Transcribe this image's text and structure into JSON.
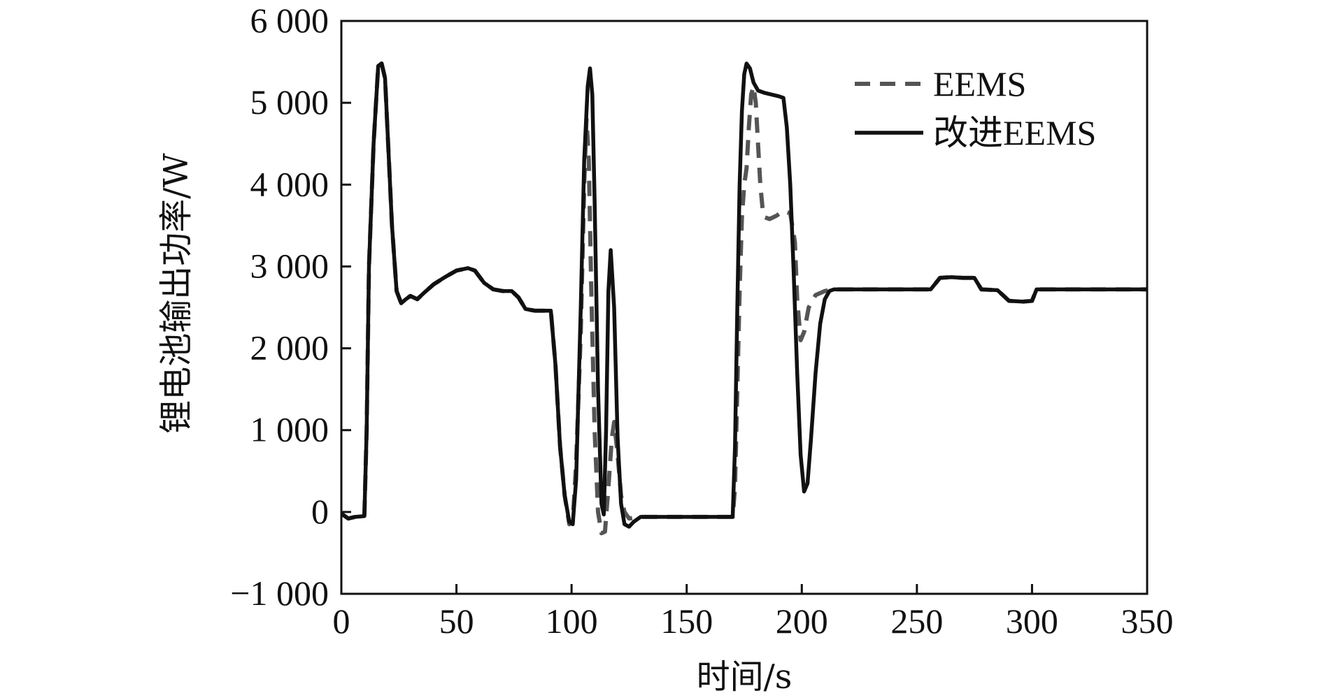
{
  "chart_data": {
    "type": "line",
    "xlabel": "时间/s",
    "ylabel": "锂电池输出功率/W",
    "xlim": [
      0,
      350
    ],
    "ylim": [
      -1000,
      6000
    ],
    "xticks": [
      0,
      50,
      100,
      150,
      200,
      250,
      300,
      350
    ],
    "yticks": [
      -1000,
      0,
      1000,
      2000,
      3000,
      4000,
      5000,
      6000
    ],
    "xtick_labels": [
      "0",
      "50",
      "100",
      "150",
      "200",
      "250",
      "300",
      "350"
    ],
    "ytick_labels": [
      "−1 000",
      "0",
      "1 000",
      "2 000",
      "3 000",
      "4 000",
      "5 000",
      "6 000"
    ],
    "legend_position": "top-right",
    "grid": false,
    "series": [
      {
        "name": "EEMS",
        "style": "dashed",
        "color": "#555555",
        "points": [
          [
            0,
            -20
          ],
          [
            3,
            -80
          ],
          [
            6,
            -60
          ],
          [
            10,
            -50
          ],
          [
            11,
            1000
          ],
          [
            12,
            3000
          ],
          [
            14,
            4500
          ],
          [
            16,
            5450
          ],
          [
            17.5,
            5480
          ],
          [
            19,
            5300
          ],
          [
            22,
            3500
          ],
          [
            24,
            2700
          ],
          [
            26,
            2550
          ],
          [
            28,
            2600
          ],
          [
            30,
            2640
          ],
          [
            33,
            2600
          ],
          [
            36,
            2680
          ],
          [
            40,
            2780
          ],
          [
            45,
            2870
          ],
          [
            50,
            2950
          ],
          [
            55,
            2980
          ],
          [
            58,
            2950
          ],
          [
            62,
            2800
          ],
          [
            66,
            2720
          ],
          [
            70,
            2700
          ],
          [
            74,
            2700
          ],
          [
            77,
            2620
          ],
          [
            80,
            2480
          ],
          [
            84,
            2460
          ],
          [
            88,
            2460
          ],
          [
            91,
            2460
          ],
          [
            93,
            1800
          ],
          [
            95,
            800
          ],
          [
            97,
            200
          ],
          [
            99,
            -150
          ],
          [
            100.5,
            -120
          ],
          [
            102,
            600
          ],
          [
            104,
            2200
          ],
          [
            105.5,
            4000
          ],
          [
            106.5,
            4800
          ],
          [
            107.5,
            4300
          ],
          [
            108.5,
            2800
          ],
          [
            110,
            1000
          ],
          [
            111.5,
            0
          ],
          [
            113,
            -260
          ],
          [
            114.5,
            -240
          ],
          [
            116,
            300
          ],
          [
            117.5,
            900
          ],
          [
            118.5,
            1100
          ],
          [
            120,
            700
          ],
          [
            121.5,
            200
          ],
          [
            123,
            0
          ],
          [
            125,
            -80
          ],
          [
            130,
            -60
          ],
          [
            135,
            -60
          ],
          [
            150,
            -60
          ],
          [
            165,
            -60
          ],
          [
            170,
            -60
          ],
          [
            171,
            300
          ],
          [
            172,
            1500
          ],
          [
            173,
            2700
          ],
          [
            174,
            3600
          ],
          [
            175,
            4000
          ],
          [
            176,
            4200
          ],
          [
            177,
            4700
          ],
          [
            178,
            5100
          ],
          [
            179,
            5200
          ],
          [
            180,
            5000
          ],
          [
            181,
            4500
          ],
          [
            182,
            4000
          ],
          [
            183,
            3700
          ],
          [
            184,
            3600
          ],
          [
            186,
            3580
          ],
          [
            189,
            3620
          ],
          [
            192,
            3680
          ],
          [
            195,
            3650
          ],
          [
            197,
            3300
          ],
          [
            198,
            2600
          ],
          [
            199.5,
            2100
          ],
          [
            201,
            2200
          ],
          [
            203,
            2500
          ],
          [
            206,
            2650
          ],
          [
            210,
            2700
          ],
          [
            214,
            2720
          ],
          [
            230,
            2720
          ],
          [
            245,
            2720
          ],
          [
            256,
            2720
          ],
          [
            260,
            2860
          ],
          [
            265,
            2870
          ],
          [
            270,
            2860
          ],
          [
            275,
            2860
          ],
          [
            278,
            2720
          ],
          [
            285,
            2710
          ],
          [
            290,
            2580
          ],
          [
            296,
            2570
          ],
          [
            300,
            2580
          ],
          [
            302,
            2720
          ],
          [
            310,
            2720
          ],
          [
            330,
            2720
          ],
          [
            350,
            2720
          ]
        ]
      },
      {
        "name": "改进EEMS",
        "style": "solid",
        "color": "#111111",
        "points": [
          [
            0,
            -20
          ],
          [
            3,
            -80
          ],
          [
            6,
            -60
          ],
          [
            10,
            -50
          ],
          [
            11,
            1000
          ],
          [
            12,
            3000
          ],
          [
            14,
            4500
          ],
          [
            16,
            5450
          ],
          [
            17.5,
            5480
          ],
          [
            19,
            5300
          ],
          [
            22,
            3500
          ],
          [
            24,
            2700
          ],
          [
            26,
            2550
          ],
          [
            28,
            2600
          ],
          [
            30,
            2640
          ],
          [
            33,
            2600
          ],
          [
            36,
            2680
          ],
          [
            40,
            2780
          ],
          [
            45,
            2870
          ],
          [
            50,
            2950
          ],
          [
            55,
            2980
          ],
          [
            58,
            2950
          ],
          [
            62,
            2800
          ],
          [
            66,
            2720
          ],
          [
            70,
            2700
          ],
          [
            74,
            2700
          ],
          [
            77,
            2620
          ],
          [
            80,
            2480
          ],
          [
            84,
            2460
          ],
          [
            88,
            2460
          ],
          [
            91,
            2460
          ],
          [
            93,
            1800
          ],
          [
            95,
            800
          ],
          [
            97,
            200
          ],
          [
            99,
            -120
          ],
          [
            100.5,
            -150
          ],
          [
            102,
            400
          ],
          [
            104,
            2500
          ],
          [
            105.5,
            4300
          ],
          [
            107,
            5200
          ],
          [
            108,
            5420
          ],
          [
            109,
            5100
          ],
          [
            110,
            3800
          ],
          [
            111.5,
            1500
          ],
          [
            113,
            100
          ],
          [
            114,
            -30
          ],
          [
            115,
            1000
          ],
          [
            116,
            2700
          ],
          [
            117,
            3200
          ],
          [
            118.5,
            2500
          ],
          [
            120,
            900
          ],
          [
            121.5,
            100
          ],
          [
            123,
            -150
          ],
          [
            125,
            -180
          ],
          [
            127,
            -120
          ],
          [
            130,
            -60
          ],
          [
            135,
            -60
          ],
          [
            150,
            -60
          ],
          [
            165,
            -60
          ],
          [
            170,
            -60
          ],
          [
            171,
            800
          ],
          [
            172,
            2500
          ],
          [
            173,
            4000
          ],
          [
            174,
            4900
          ],
          [
            175,
            5350
          ],
          [
            176,
            5480
          ],
          [
            177.5,
            5420
          ],
          [
            179,
            5250
          ],
          [
            181,
            5150
          ],
          [
            184,
            5120
          ],
          [
            187,
            5100
          ],
          [
            190,
            5080
          ],
          [
            192,
            5060
          ],
          [
            193.5,
            4700
          ],
          [
            195,
            4000
          ],
          [
            196.5,
            2900
          ],
          [
            198,
            1700
          ],
          [
            199.5,
            700
          ],
          [
            201,
            250
          ],
          [
            202.5,
            350
          ],
          [
            204,
            900
          ],
          [
            206,
            1700
          ],
          [
            208,
            2300
          ],
          [
            210,
            2600
          ],
          [
            212,
            2700
          ],
          [
            214,
            2720
          ],
          [
            230,
            2720
          ],
          [
            245,
            2720
          ],
          [
            256,
            2720
          ],
          [
            260,
            2860
          ],
          [
            265,
            2870
          ],
          [
            270,
            2860
          ],
          [
            275,
            2860
          ],
          [
            278,
            2720
          ],
          [
            285,
            2710
          ],
          [
            290,
            2580
          ],
          [
            296,
            2570
          ],
          [
            300,
            2580
          ],
          [
            302,
            2720
          ],
          [
            310,
            2720
          ],
          [
            330,
            2720
          ],
          [
            350,
            2720
          ]
        ]
      }
    ]
  }
}
